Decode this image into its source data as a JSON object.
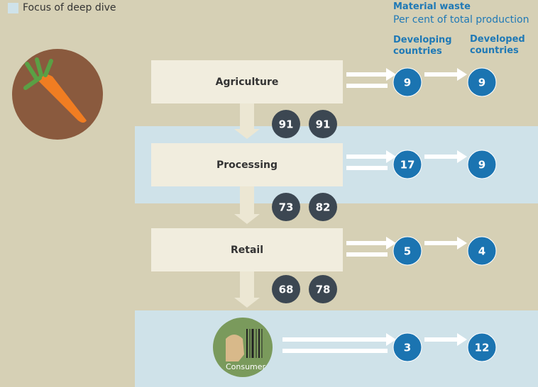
{
  "legend": {
    "label": "Focus of deep dive"
  },
  "header": {
    "title": "Material waste",
    "subtitle": "Per cent of total production",
    "columns": [
      "Developing countries",
      "Developed countries"
    ]
  },
  "stages": [
    {
      "name": "Agriculture",
      "waste": [
        9,
        9
      ],
      "remaining": [
        91,
        91
      ]
    },
    {
      "name": "Processing",
      "waste": [
        17,
        9
      ],
      "remaining": [
        73,
        82
      ]
    },
    {
      "name": "Retail",
      "waste": [
        5,
        4
      ],
      "remaining": [
        68,
        78
      ]
    },
    {
      "name": "Consumer",
      "waste": [
        3,
        12
      ]
    }
  ]
}
